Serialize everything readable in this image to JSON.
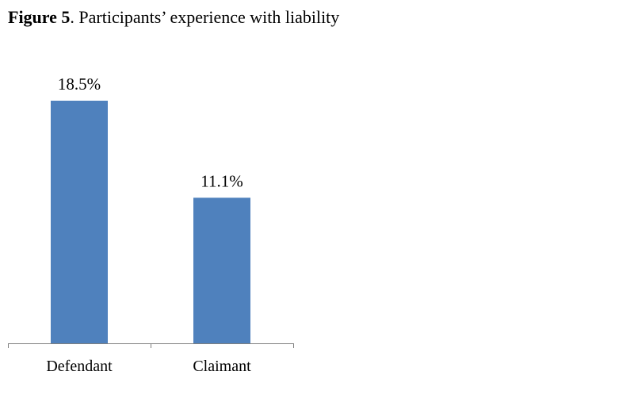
{
  "figure": {
    "label": "Figure 5",
    "caption": ". Participants’ experience with liability"
  },
  "chart_data": {
    "type": "bar",
    "categories": [
      "Defendant",
      "Claimant"
    ],
    "values": [
      18.5,
      11.1
    ],
    "data_labels": [
      "18.5%",
      "11.1%"
    ],
    "bar_color": "#4f81bd",
    "ylim": [
      0,
      18.5
    ],
    "grid": false,
    "legend": "none"
  }
}
